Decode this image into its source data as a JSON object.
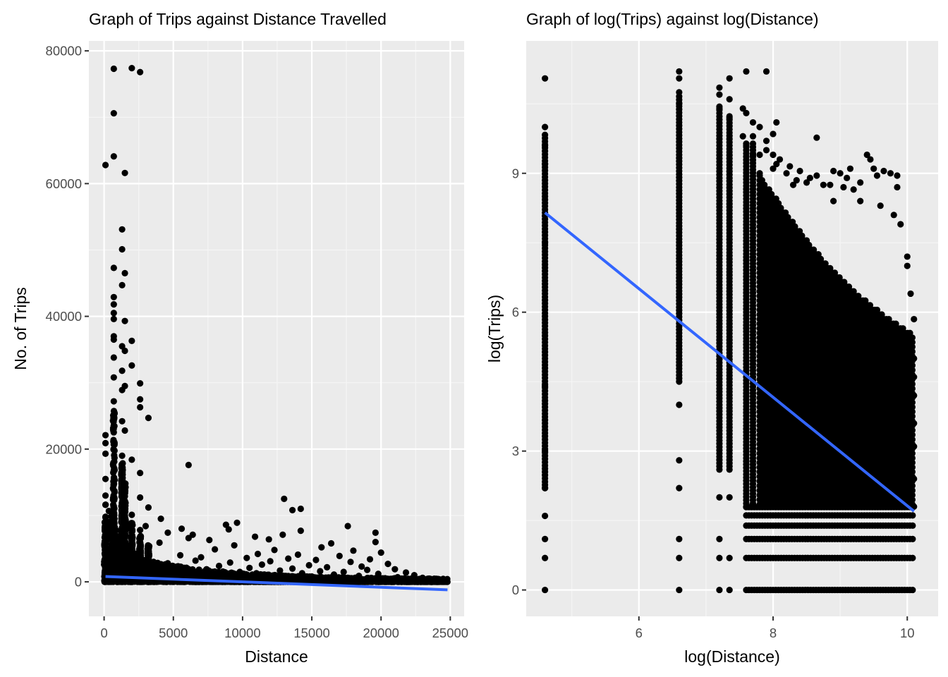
{
  "colors": {
    "panel_background": "#ebebeb",
    "grid_major": "#ffffff",
    "grid_minor": "#f5f5f5",
    "points": "#000000",
    "fit_line": "#3366ff",
    "tick_text": "#4d4d4d"
  },
  "chart_data": [
    {
      "type": "scatter",
      "title": "Graph of Trips against Distance Travelled",
      "xlabel": "Distance",
      "ylabel": "No. of Trips",
      "xlim": [
        -1100,
        26000
      ],
      "ylim": [
        -5200,
        81500
      ],
      "xticks": [
        0,
        5000,
        10000,
        15000,
        20000,
        25000
      ],
      "xtick_labels": [
        "0",
        "5000",
        "10000",
        "15000",
        "20000",
        "25000"
      ],
      "yticks": [
        0,
        20000,
        40000,
        60000,
        80000
      ],
      "ytick_labels": [
        "0",
        "20000",
        "40000",
        "60000",
        "80000"
      ],
      "grid": true,
      "legend": "none",
      "points": [
        [
          100,
          62800
        ],
        [
          700,
          77300
        ],
        [
          2000,
          77400
        ],
        [
          2600,
          76800
        ],
        [
          700,
          70600
        ],
        [
          700,
          64100
        ],
        [
          1500,
          61600
        ],
        [
          1300,
          53100
        ],
        [
          1300,
          50100
        ],
        [
          700,
          47300
        ],
        [
          1500,
          46500
        ],
        [
          1300,
          44700
        ],
        [
          700,
          42900
        ],
        [
          700,
          41800
        ],
        [
          700,
          40500
        ],
        [
          700,
          39600
        ],
        [
          1500,
          39300
        ],
        [
          700,
          37000
        ],
        [
          700,
          36500
        ],
        [
          2000,
          36300
        ],
        [
          1300,
          35500
        ],
        [
          1500,
          34800
        ],
        [
          700,
          33800
        ],
        [
          2000,
          32600
        ],
        [
          1300,
          31800
        ],
        [
          700,
          30800
        ],
        [
          2600,
          29900
        ],
        [
          1500,
          29500
        ],
        [
          1300,
          28900
        ],
        [
          2600,
          27500
        ],
        [
          700,
          27200
        ],
        [
          2600,
          26300
        ],
        [
          700,
          24800
        ],
        [
          3200,
          24700
        ],
        [
          1300,
          24200
        ],
        [
          1500,
          22800
        ],
        [
          100,
          22100
        ],
        [
          100,
          20900
        ],
        [
          700,
          20700
        ],
        [
          100,
          19300
        ],
        [
          1300,
          19000
        ],
        [
          2000,
          18400
        ],
        [
          6100,
          17600
        ],
        [
          2600,
          16400
        ],
        [
          100,
          15500
        ],
        [
          700,
          15200
        ],
        [
          1300,
          14900
        ],
        [
          1500,
          14100
        ],
        [
          100,
          13000
        ],
        [
          2600,
          12700
        ],
        [
          13000,
          12500
        ],
        [
          100,
          11600
        ],
        [
          700,
          11400
        ],
        [
          3200,
          11200
        ],
        [
          14200,
          11000
        ],
        [
          13600,
          10800
        ],
        [
          1500,
          10500
        ],
        [
          2000,
          10100
        ],
        [
          100,
          9700
        ],
        [
          4100,
          9500
        ],
        [
          700,
          9200
        ],
        [
          9600,
          8900
        ],
        [
          8800,
          8600
        ],
        [
          3000,
          8400
        ],
        [
          17600,
          8400
        ],
        [
          1300,
          8200
        ],
        [
          5600,
          8000
        ],
        [
          9000,
          7900
        ],
        [
          2600,
          7800
        ],
        [
          14200,
          7700
        ],
        [
          19600,
          7400
        ],
        [
          4600,
          7400
        ],
        [
          700,
          7300
        ],
        [
          6400,
          7100
        ],
        [
          12900,
          7100
        ],
        [
          100,
          6800
        ],
        [
          10900,
          6800
        ],
        [
          6100,
          6600
        ],
        [
          11900,
          6400
        ],
        [
          7600,
          6300
        ],
        [
          2000,
          6200
        ],
        [
          19600,
          6000
        ],
        [
          4000,
          5900
        ],
        [
          16400,
          5800
        ],
        [
          9400,
          5500
        ],
        [
          15700,
          5200
        ],
        [
          3200,
          5000
        ],
        [
          8000,
          4900
        ],
        [
          12300,
          4800
        ],
        [
          18000,
          4700
        ],
        [
          20000,
          4400
        ],
        [
          700,
          4300
        ],
        [
          11100,
          4200
        ],
        [
          14000,
          4100
        ],
        [
          5500,
          4000
        ],
        [
          17000,
          3900
        ],
        [
          100,
          3800
        ],
        [
          7000,
          3700
        ],
        [
          10300,
          3600
        ],
        [
          13300,
          3500
        ],
        [
          19200,
          3400
        ],
        [
          2400,
          3300
        ],
        [
          15300,
          3300
        ],
        [
          6600,
          3200
        ],
        [
          12000,
          3100
        ],
        [
          17800,
          3000
        ],
        [
          9100,
          2900
        ],
        [
          4600,
          2800
        ],
        [
          20500,
          2700
        ],
        [
          11400,
          2600
        ],
        [
          14800,
          2500
        ],
        [
          700,
          2400
        ],
        [
          8300,
          2400
        ],
        [
          18600,
          2300
        ],
        [
          16100,
          2200
        ],
        [
          3800,
          2100
        ],
        [
          10500,
          2100
        ],
        [
          13600,
          2000
        ],
        [
          21000,
          1900
        ],
        [
          7400,
          1900
        ],
        [
          19000,
          1800
        ],
        [
          5100,
          1700
        ],
        [
          12700,
          1700
        ],
        [
          15600,
          1600
        ],
        [
          1500,
          1600
        ],
        [
          9800,
          1500
        ],
        [
          17300,
          1500
        ],
        [
          21800,
          1400
        ],
        [
          6300,
          1400
        ],
        [
          14300,
          1300
        ],
        [
          11000,
          1300
        ],
        [
          4300,
          1200
        ],
        [
          19800,
          1200
        ],
        [
          8600,
          1100
        ],
        [
          16600,
          1100
        ],
        [
          22400,
          1000
        ],
        [
          2800,
          1000
        ],
        [
          12200,
          900
        ],
        [
          18400,
          900
        ],
        [
          10000,
          800
        ],
        [
          15000,
          800
        ],
        [
          21200,
          700
        ],
        [
          7200,
          700
        ],
        [
          23000,
          600
        ],
        [
          13100,
          600
        ],
        [
          5700,
          600
        ],
        [
          19400,
          500
        ],
        [
          17000,
          500
        ],
        [
          23600,
          400
        ],
        [
          9300,
          400
        ],
        [
          11800,
          400
        ],
        [
          20700,
          300
        ],
        [
          24200,
          300
        ],
        [
          14600,
          300
        ],
        [
          16200,
          200
        ],
        [
          22700,
          200
        ],
        [
          24700,
          100
        ],
        [
          3500,
          200
        ],
        [
          8100,
          300
        ],
        [
          18800,
          200
        ],
        [
          100,
          500
        ],
        [
          700,
          600
        ],
        [
          1300,
          700
        ],
        [
          2000,
          500
        ],
        [
          21500,
          100
        ],
        [
          20300,
          100
        ],
        [
          24000,
          50
        ],
        [
          23300,
          50
        ]
      ],
      "fit_line": [
        [
          100,
          800
        ],
        [
          24800,
          -1200
        ]
      ]
    },
    {
      "type": "scatter",
      "title": "Graph of log(Trips) against log(Distance)",
      "xlabel": "log(Distance)",
      "ylabel": "log(Trips)",
      "xlim": [
        4.32,
        10.46
      ],
      "ylim": [
        -0.57,
        11.86
      ],
      "xticks": [
        6,
        8,
        10
      ],
      "xtick_labels": [
        "6",
        "8",
        "10"
      ],
      "yticks": [
        0,
        3,
        6,
        9
      ],
      "ytick_labels": [
        "0",
        "3",
        "6",
        "9"
      ],
      "grid": true,
      "legend": "none",
      "points": [
        [
          4.6,
          11.05
        ],
        [
          4.6,
          10.0
        ],
        [
          4.6,
          9.6
        ],
        [
          4.6,
          9.2
        ],
        [
          4.6,
          7.5
        ],
        [
          4.6,
          4.4
        ],
        [
          4.6,
          3.0
        ],
        [
          4.6,
          2.2
        ],
        [
          4.6,
          1.6
        ],
        [
          4.6,
          1.1
        ],
        [
          4.6,
          0.69
        ],
        [
          4.6,
          0.0
        ],
        [
          6.6,
          11.2
        ],
        [
          6.6,
          11.05
        ],
        [
          6.6,
          10.75
        ],
        [
          6.6,
          10.5
        ],
        [
          6.6,
          4.0
        ],
        [
          6.6,
          2.8
        ],
        [
          6.6,
          2.2
        ],
        [
          6.6,
          1.1
        ],
        [
          6.6,
          0.69
        ],
        [
          6.6,
          0.0
        ],
        [
          7.2,
          10.85
        ],
        [
          7.2,
          10.7
        ],
        [
          7.2,
          10.4
        ],
        [
          7.2,
          2.0
        ],
        [
          7.2,
          1.1
        ],
        [
          7.2,
          0.69
        ],
        [
          7.2,
          0.0
        ],
        [
          7.35,
          11.05
        ],
        [
          7.35,
          10.6
        ],
        [
          7.35,
          10.2
        ],
        [
          7.35,
          2.0
        ],
        [
          7.35,
          0.69
        ],
        [
          7.35,
          0.0
        ],
        [
          7.55,
          10.4
        ],
        [
          7.55,
          9.8
        ],
        [
          7.6,
          11.2
        ],
        [
          7.6,
          10.3
        ],
        [
          7.6,
          9.6
        ],
        [
          7.7,
          10.1
        ],
        [
          7.7,
          9.8
        ],
        [
          7.7,
          9.4
        ],
        [
          7.8,
          10.0
        ],
        [
          7.8,
          9.4
        ],
        [
          7.8,
          9.0
        ],
        [
          7.9,
          11.2
        ],
        [
          7.9,
          9.7
        ],
        [
          7.9,
          9.5
        ],
        [
          8.0,
          9.85
        ],
        [
          8.0,
          9.4
        ],
        [
          8.0,
          9.1
        ],
        [
          8.05,
          10.1
        ],
        [
          8.05,
          9.2
        ],
        [
          8.1,
          9.3
        ],
        [
          8.2,
          9.0
        ],
        [
          8.25,
          9.15
        ],
        [
          8.35,
          8.85
        ],
        [
          8.4,
          9.05
        ],
        [
          8.55,
          8.9
        ],
        [
          8.65,
          8.95
        ],
        [
          8.75,
          8.75
        ],
        [
          8.9,
          9.05
        ],
        [
          9.0,
          9.0
        ],
        [
          9.05,
          8.7
        ],
        [
          9.1,
          8.9
        ],
        [
          9.2,
          8.65
        ],
        [
          9.3,
          8.8
        ],
        [
          9.4,
          9.4
        ],
        [
          9.45,
          9.3
        ],
        [
          9.55,
          8.95
        ],
        [
          9.75,
          9.0
        ],
        [
          9.85,
          8.95
        ],
        [
          9.85,
          8.7
        ],
        [
          9.65,
          9.05
        ],
        [
          9.5,
          9.1
        ],
        [
          8.3,
          8.75
        ],
        [
          8.5,
          8.8
        ],
        [
          8.85,
          8.75
        ],
        [
          9.15,
          9.1
        ],
        [
          8.65,
          9.77
        ],
        [
          8.9,
          8.4
        ],
        [
          9.3,
          8.4
        ],
        [
          9.6,
          8.3
        ],
        [
          9.8,
          8.1
        ],
        [
          9.9,
          7.9
        ],
        [
          10.0,
          7.2
        ],
        [
          10.0,
          7.0
        ],
        [
          10.05,
          6.4
        ],
        [
          10.1,
          5.85
        ],
        [
          10.1,
          5.0
        ],
        [
          10.1,
          4.6
        ],
        [
          10.1,
          4.2
        ],
        [
          10.1,
          3.6
        ],
        [
          10.1,
          3.1
        ],
        [
          10.1,
          2.4
        ],
        [
          10.1,
          1.8
        ]
      ],
      "columns": [
        {
          "x": 4.6,
          "y_from": 2.2,
          "y_to": 9.85
        },
        {
          "x": 6.6,
          "y_from": 4.5,
          "y_to": 10.7
        },
        {
          "x": 7.2,
          "y_from": 2.6,
          "y_to": 10.5
        },
        {
          "x": 7.35,
          "y_from": 2.6,
          "y_to": 10.3
        },
        {
          "x": 7.6,
          "y_from": 1.8,
          "y_to": 9.7
        },
        {
          "x": 7.7,
          "y_from": 1.8,
          "y_to": 9.7
        }
      ],
      "point_cloud": {
        "x_from": 7.8,
        "x_to": 10.1,
        "y_bottom": 1.85,
        "y_top_left": 8.95,
        "y_top_right": 5.5
      },
      "discrete_levels": {
        "y": [
          0.0,
          0.69,
          1.1,
          1.39,
          1.61,
          1.79
        ],
        "x_from": 7.6,
        "x_to": 10.1
      },
      "fit_line": [
        [
          4.6,
          8.15
        ],
        [
          10.1,
          1.7
        ]
      ]
    }
  ]
}
